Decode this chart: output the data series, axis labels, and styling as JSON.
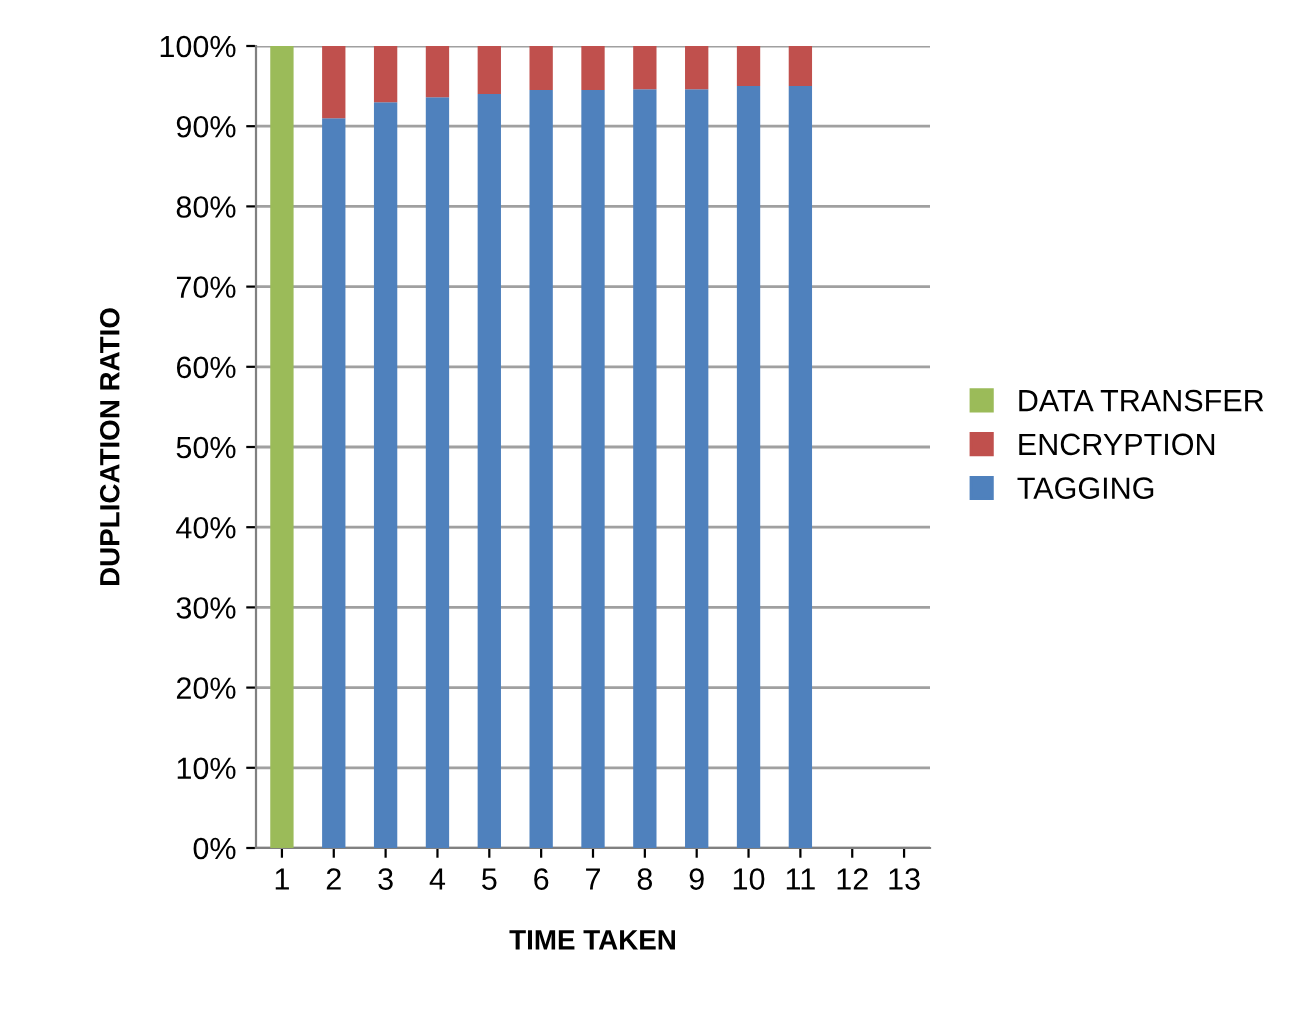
{
  "chart_data": {
    "type": "bar",
    "stacked": true,
    "xlabel": "TIME TAKEN",
    "ylabel": "DUPLICATION RATIO",
    "categories": [
      "1",
      "2",
      "3",
      "4",
      "5",
      "6",
      "7",
      "8",
      "9",
      "10",
      "11",
      "12",
      "13"
    ],
    "series": [
      {
        "name": "TAGGING",
        "color": "#4f81bd",
        "values": [
          0,
          91,
          93,
          93.6,
          94,
          94.5,
          94.5,
          94.6,
          94.6,
          95,
          95,
          null,
          null
        ]
      },
      {
        "name": "ENCRYPTION",
        "color": "#c0504d",
        "values": [
          0,
          9,
          7,
          6.4,
          6,
          5.5,
          5.5,
          5.4,
          5.4,
          5,
          5,
          null,
          null
        ]
      },
      {
        "name": "DATA TRANSFER",
        "color": "#9bbb59",
        "values": [
          100,
          0,
          0,
          0,
          0,
          0,
          0,
          0,
          0,
          0,
          0,
          null,
          null
        ]
      }
    ],
    "ylim": [
      0,
      100
    ],
    "yticks": [
      {
        "value": 0,
        "label": "0%"
      },
      {
        "value": 10,
        "label": "10%"
      },
      {
        "value": 20,
        "label": "20%"
      },
      {
        "value": 30,
        "label": "30%"
      },
      {
        "value": 40,
        "label": "40%"
      },
      {
        "value": 50,
        "label": "50%"
      },
      {
        "value": 60,
        "label": "60%"
      },
      {
        "value": 70,
        "label": "70%"
      },
      {
        "value": 80,
        "label": "80%"
      },
      {
        "value": 90,
        "label": "90%"
      },
      {
        "value": 100,
        "label": "100%"
      }
    ],
    "grid": "y",
    "legend": "right"
  }
}
